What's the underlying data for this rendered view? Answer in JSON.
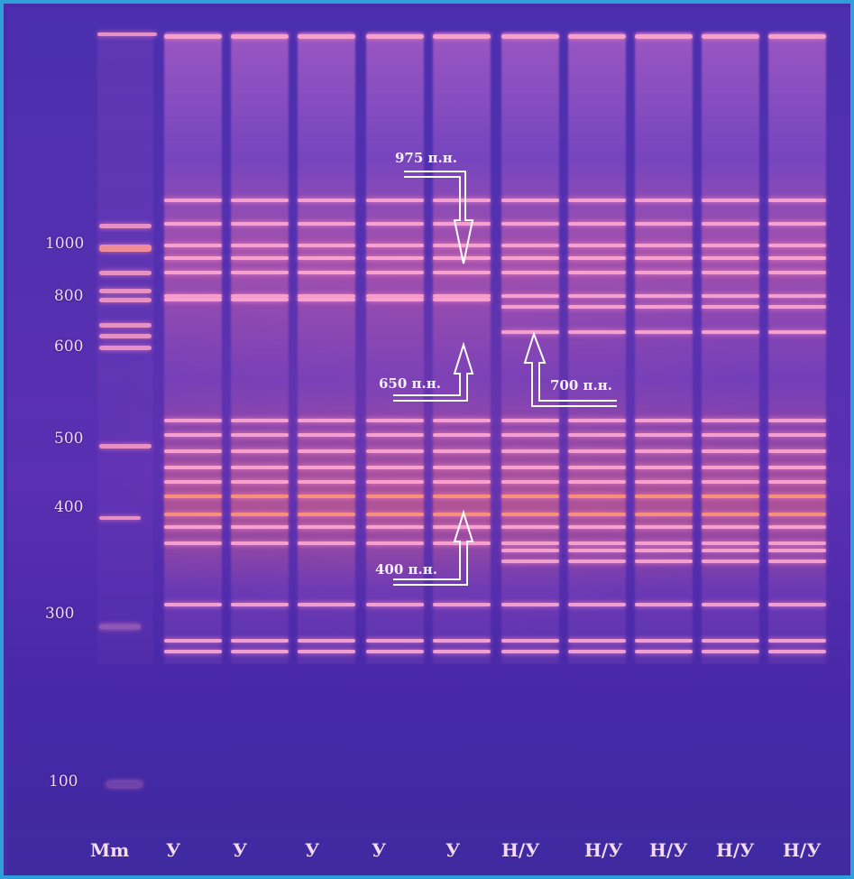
{
  "marker_labels": {
    "m1000": "1000",
    "m800": "800",
    "m600": "600",
    "m500": "500",
    "m400": "400",
    "m300": "300",
    "m100": "100"
  },
  "annotations": {
    "a975": "975 п.н.",
    "a650": "650 п.н.",
    "a700": "700 п.н.",
    "a400": "400 п.н."
  },
  "lane_labels": {
    "mm": "Mm",
    "l1": "У",
    "l2": "У",
    "l3": "У",
    "l4": "У",
    "l5": "У",
    "l6": "Н/У",
    "l7": "Н/У",
    "l8": "Н/У",
    "l9": "Н/У",
    "l10": "Н/У"
  },
  "colors": {
    "frame": "#2e9fd9",
    "gel_background": "#4a2aa8",
    "band": "#ffaad2"
  }
}
